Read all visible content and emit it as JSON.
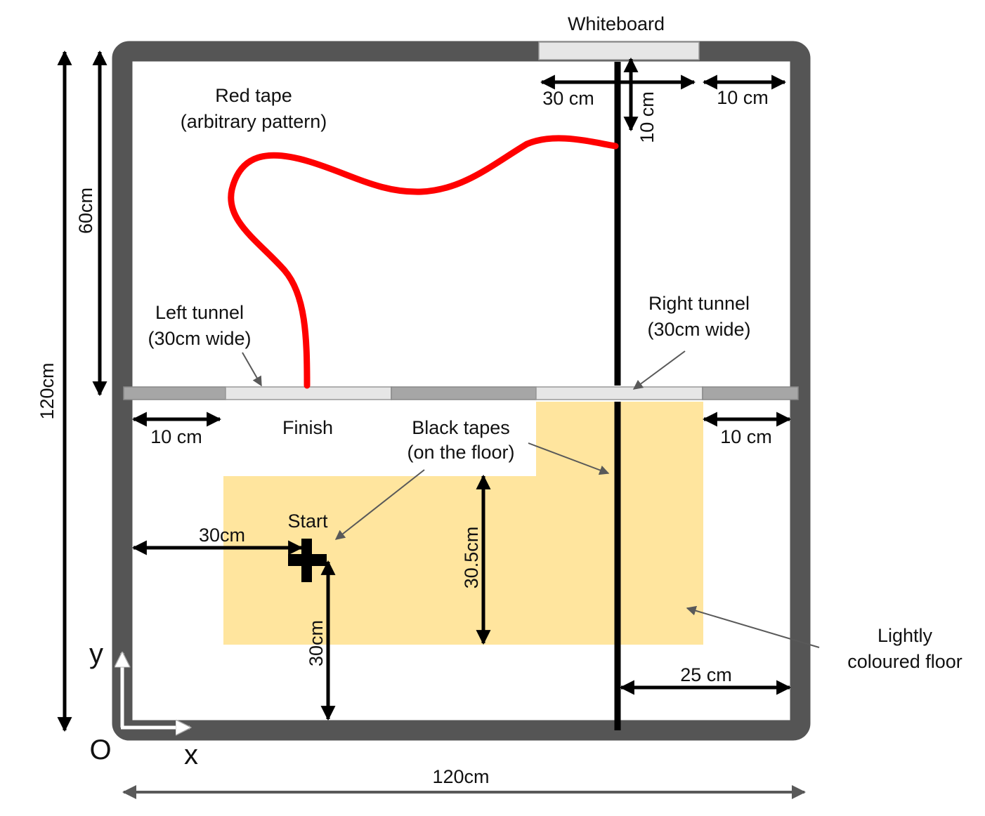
{
  "colors": {
    "wall": "#555555",
    "floor_highlight": "#ffe59e",
    "red_tape": "#ff0000",
    "black_tape": "#000000",
    "whiteboard": "#e6e6e6",
    "tunnel_dark": "#a6a6a6",
    "tunnel_light": "#e6e6e6",
    "pointer": "#595959",
    "axis_arrow": "#ffffff"
  },
  "labels": {
    "whiteboard": "Whiteboard",
    "red_tape_line1": "Red tape",
    "red_tape_line2": "(arbitrary pattern)",
    "left_tunnel_line1": "Left tunnel",
    "left_tunnel_line2": "(30cm wide)",
    "right_tunnel_line1": "Right tunnel",
    "right_tunnel_line2": "(30cm wide)",
    "finish": "Finish",
    "start": "Start",
    "black_tapes_line1": "Black tapes",
    "black_tapes_line2": "(on the floor)",
    "lightly_line1": "Lightly",
    "lightly_line2": "coloured floor"
  },
  "dimensions": {
    "total_height": "120cm",
    "upper_height": "60cm",
    "total_width": "120cm",
    "whiteboard_left": "30 cm",
    "whiteboard_down": "10 cm",
    "top_right_gap": "10 cm",
    "left_gap": "10 cm",
    "right_gap": "10 cm",
    "start_x": "30cm",
    "start_y": "30cm",
    "floor_height": "30.5cm",
    "right_offset": "25 cm"
  },
  "axes": {
    "origin": "O",
    "x": "x",
    "y": "y"
  }
}
